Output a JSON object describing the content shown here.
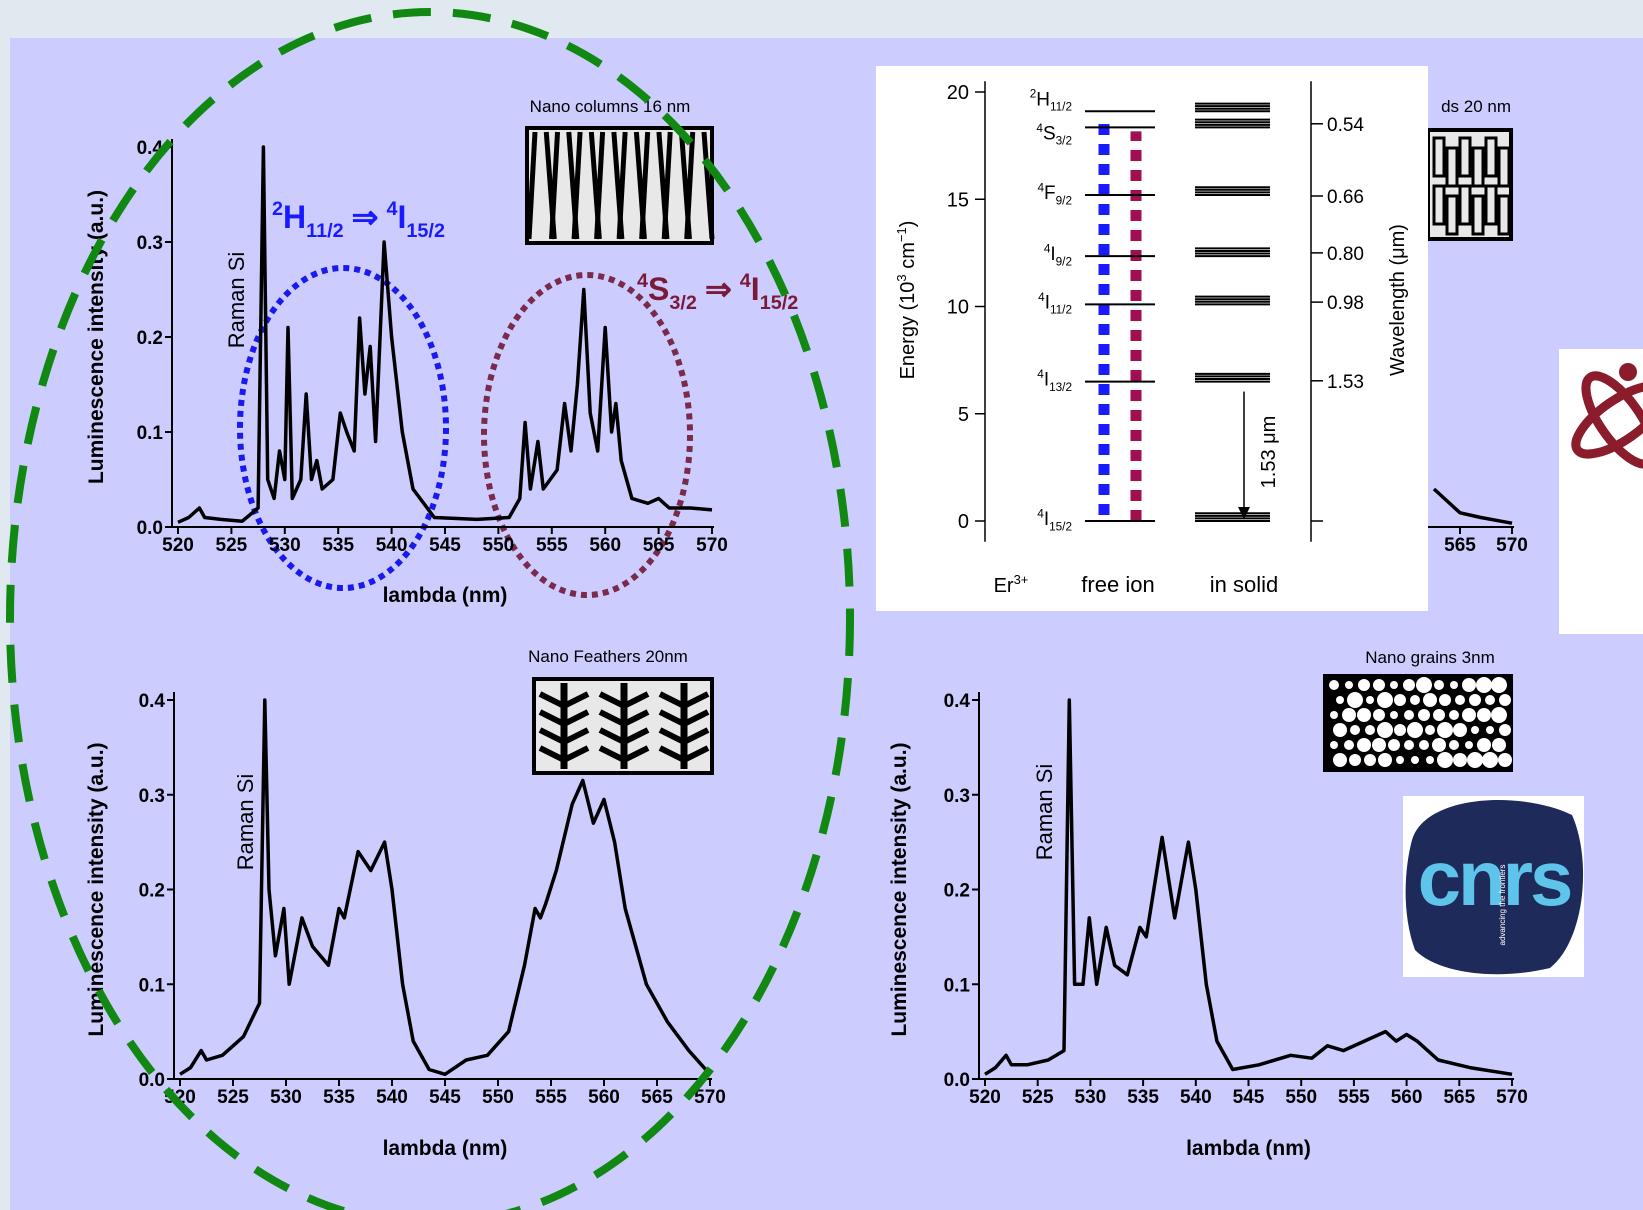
{
  "chart_data": [
    {
      "type": "line",
      "title": "Nano columns 16 nm",
      "xlabel": "lambda (nm)",
      "ylabel": "Luminescence intensity (a.u.)",
      "annotation": "Raman Si",
      "xlim": [
        520,
        570
      ],
      "ylim": [
        0,
        0.4
      ],
      "xticks": [
        520,
        525,
        530,
        535,
        540,
        545,
        550,
        555,
        560,
        565,
        570
      ],
      "yticks": [
        {
          "value": 0,
          "label": "0.0"
        },
        0.1,
        0.2,
        0.3,
        0.4
      ],
      "series": [
        {
          "color": "#000000",
          "x": [
            520,
            521,
            522,
            522.5,
            524,
            526,
            527.5,
            528,
            528.4,
            529,
            529.5,
            530,
            530.3,
            530.7,
            531.5,
            532,
            532.5,
            533,
            533.5,
            534.5,
            535.2,
            535.8,
            536.5,
            537,
            537.5,
            538,
            538.5,
            539.3,
            540,
            541,
            542,
            544,
            548,
            551,
            552,
            552.5,
            553,
            553.7,
            554.2,
            555.5,
            556.2,
            556.8,
            557.4,
            558,
            558.6,
            559.3,
            560,
            560.6,
            561,
            561.5,
            562.5,
            564,
            565,
            566,
            568,
            570
          ],
          "values": [
            0.005,
            0.01,
            0.02,
            0.01,
            0.008,
            0.006,
            0.02,
            0.4,
            0.05,
            0.03,
            0.08,
            0.05,
            0.21,
            0.03,
            0.05,
            0.14,
            0.05,
            0.07,
            0.04,
            0.05,
            0.12,
            0.1,
            0.08,
            0.22,
            0.14,
            0.19,
            0.09,
            0.3,
            0.2,
            0.1,
            0.04,
            0.01,
            0.008,
            0.01,
            0.03,
            0.11,
            0.04,
            0.09,
            0.04,
            0.06,
            0.13,
            0.08,
            0.15,
            0.25,
            0.12,
            0.08,
            0.21,
            0.1,
            0.13,
            0.07,
            0.03,
            0.025,
            0.03,
            0.02,
            0.02,
            0.018
          ]
        }
      ],
      "transitions": [
        {
          "from": [
            "2",
            "H",
            "11/2"
          ],
          "arrow": "⇒",
          "to": [
            "4",
            "I",
            "15/2"
          ],
          "color": "#1a1aff"
        },
        {
          "from": [
            "4",
            "S",
            "3/2"
          ],
          "arrow": "⇒",
          "to": [
            "4",
            "I",
            "15/2"
          ],
          "color": "#7a1a3a"
        }
      ]
    },
    {
      "type": "line",
      "title": "ds 20 nm",
      "xlim": [
        520,
        570
      ],
      "ylim": [
        0,
        0.4
      ],
      "xticks": [
        565,
        570
      ],
      "series": [
        {
          "color": "#000000",
          "x": [
            562.5,
            563.5,
            565,
            567,
            569,
            570
          ],
          "values": [
            0.04,
            0.03,
            0.015,
            0.01,
            0.006,
            0.004
          ]
        }
      ]
    },
    {
      "type": "line",
      "title": "Nano Feathers 20nm",
      "xlabel": "lambda (nm)",
      "ylabel": "Luminescence intensity (a.u.)",
      "annotation": "Raman Si",
      "xlim": [
        520,
        570
      ],
      "ylim": [
        0,
        0.4
      ],
      "xticks": [
        520,
        525,
        530,
        535,
        540,
        545,
        550,
        555,
        560,
        565,
        570
      ],
      "yticks": [
        {
          "value": 0,
          "label": "0.0"
        },
        0.1,
        0.2,
        0.3,
        0.4
      ],
      "series": [
        {
          "color": "#000000",
          "x": [
            520,
            521,
            522,
            522.5,
            524,
            526,
            527.5,
            528,
            528.4,
            529,
            529.8,
            530.3,
            531.5,
            532.5,
            534,
            535,
            535.5,
            536.8,
            538,
            539.3,
            540,
            541,
            542,
            543.5,
            545,
            547,
            549,
            551,
            552.5,
            553.5,
            554,
            554.5,
            555.5,
            557,
            558,
            559,
            560,
            561,
            562,
            564,
            566,
            568,
            570
          ],
          "values": [
            0.005,
            0.012,
            0.03,
            0.02,
            0.025,
            0.045,
            0.08,
            0.4,
            0.2,
            0.13,
            0.18,
            0.1,
            0.17,
            0.14,
            0.12,
            0.18,
            0.17,
            0.24,
            0.22,
            0.25,
            0.2,
            0.1,
            0.04,
            0.01,
            0.005,
            0.02,
            0.025,
            0.05,
            0.12,
            0.18,
            0.17,
            0.185,
            0.22,
            0.29,
            0.315,
            0.27,
            0.295,
            0.25,
            0.18,
            0.1,
            0.06,
            0.03,
            0.005
          ]
        }
      ]
    },
    {
      "type": "line",
      "title": "Nano grains 3nm",
      "xlabel": "lambda (nm)",
      "ylabel": "Luminescence intensity (a.u.)",
      "annotation": "Raman Si",
      "xlim": [
        520,
        570
      ],
      "ylim": [
        0,
        0.4
      ],
      "xticks": [
        520,
        525,
        530,
        535,
        540,
        545,
        550,
        555,
        560,
        565,
        570
      ],
      "yticks": [
        {
          "value": 0,
          "label": "0.0"
        },
        0.1,
        0.2,
        0.3,
        0.4
      ],
      "series": [
        {
          "color": "#000000",
          "x": [
            520,
            521,
            522,
            522.5,
            524,
            526,
            527.5,
            528,
            528.5,
            529.3,
            529.9,
            530.6,
            531.5,
            532.3,
            533.5,
            534.7,
            535.3,
            536.8,
            538,
            539.3,
            540,
            541,
            542,
            543.5,
            546,
            549,
            551,
            552.5,
            554,
            556,
            558,
            559,
            560,
            561,
            563,
            566,
            570
          ],
          "values": [
            0.005,
            0.012,
            0.025,
            0.015,
            0.015,
            0.02,
            0.03,
            0.4,
            0.1,
            0.1,
            0.17,
            0.1,
            0.16,
            0.12,
            0.11,
            0.16,
            0.15,
            0.255,
            0.17,
            0.25,
            0.2,
            0.1,
            0.04,
            0.01,
            0.015,
            0.025,
            0.022,
            0.035,
            0.03,
            0.04,
            0.05,
            0.04,
            0.047,
            0.04,
            0.02,
            0.012,
            0.005
          ]
        }
      ]
    },
    {
      "type": "levels",
      "ylabel": [
        "Energy  (10",
        "3",
        " cm",
        "−1",
        ")"
      ],
      "y2label": "Wavelength  (μm)",
      "ylim": [
        -0.5,
        20.5
      ],
      "yticks": [
        0,
        5,
        10,
        15,
        20
      ],
      "y2ticks": [
        0.54,
        0.66,
        {
          "value": 0.8,
          "label": "0.80"
        },
        0.98,
        1.53
      ],
      "levels": [
        {
          "label": [
            "2",
            "H",
            "11/2"
          ],
          "energy": 19.1
        },
        {
          "label": [
            "4",
            "S",
            "3/2"
          ],
          "energy": 18.35
        },
        {
          "label": [
            "4",
            "F",
            "9/2"
          ],
          "energy": 15.2
        },
        {
          "label": [
            "4",
            "I",
            "9/2"
          ],
          "energy": 12.35
        },
        {
          "label": [
            "4",
            "I",
            "11/2"
          ],
          "energy": 10.1
        },
        {
          "label": [
            "4",
            "I",
            "13/2"
          ],
          "energy": 6.5
        },
        {
          "label": [
            "4",
            "I",
            "15/2"
          ],
          "energy": 0
        }
      ],
      "species": [
        "Er",
        "3+"
      ],
      "columns": [
        "free ion",
        "in solid"
      ],
      "arrow_label": "1.53 μm"
    }
  ],
  "logos": {
    "cnrs": "cnrs",
    "tagline": "advancing the frontiers"
  }
}
